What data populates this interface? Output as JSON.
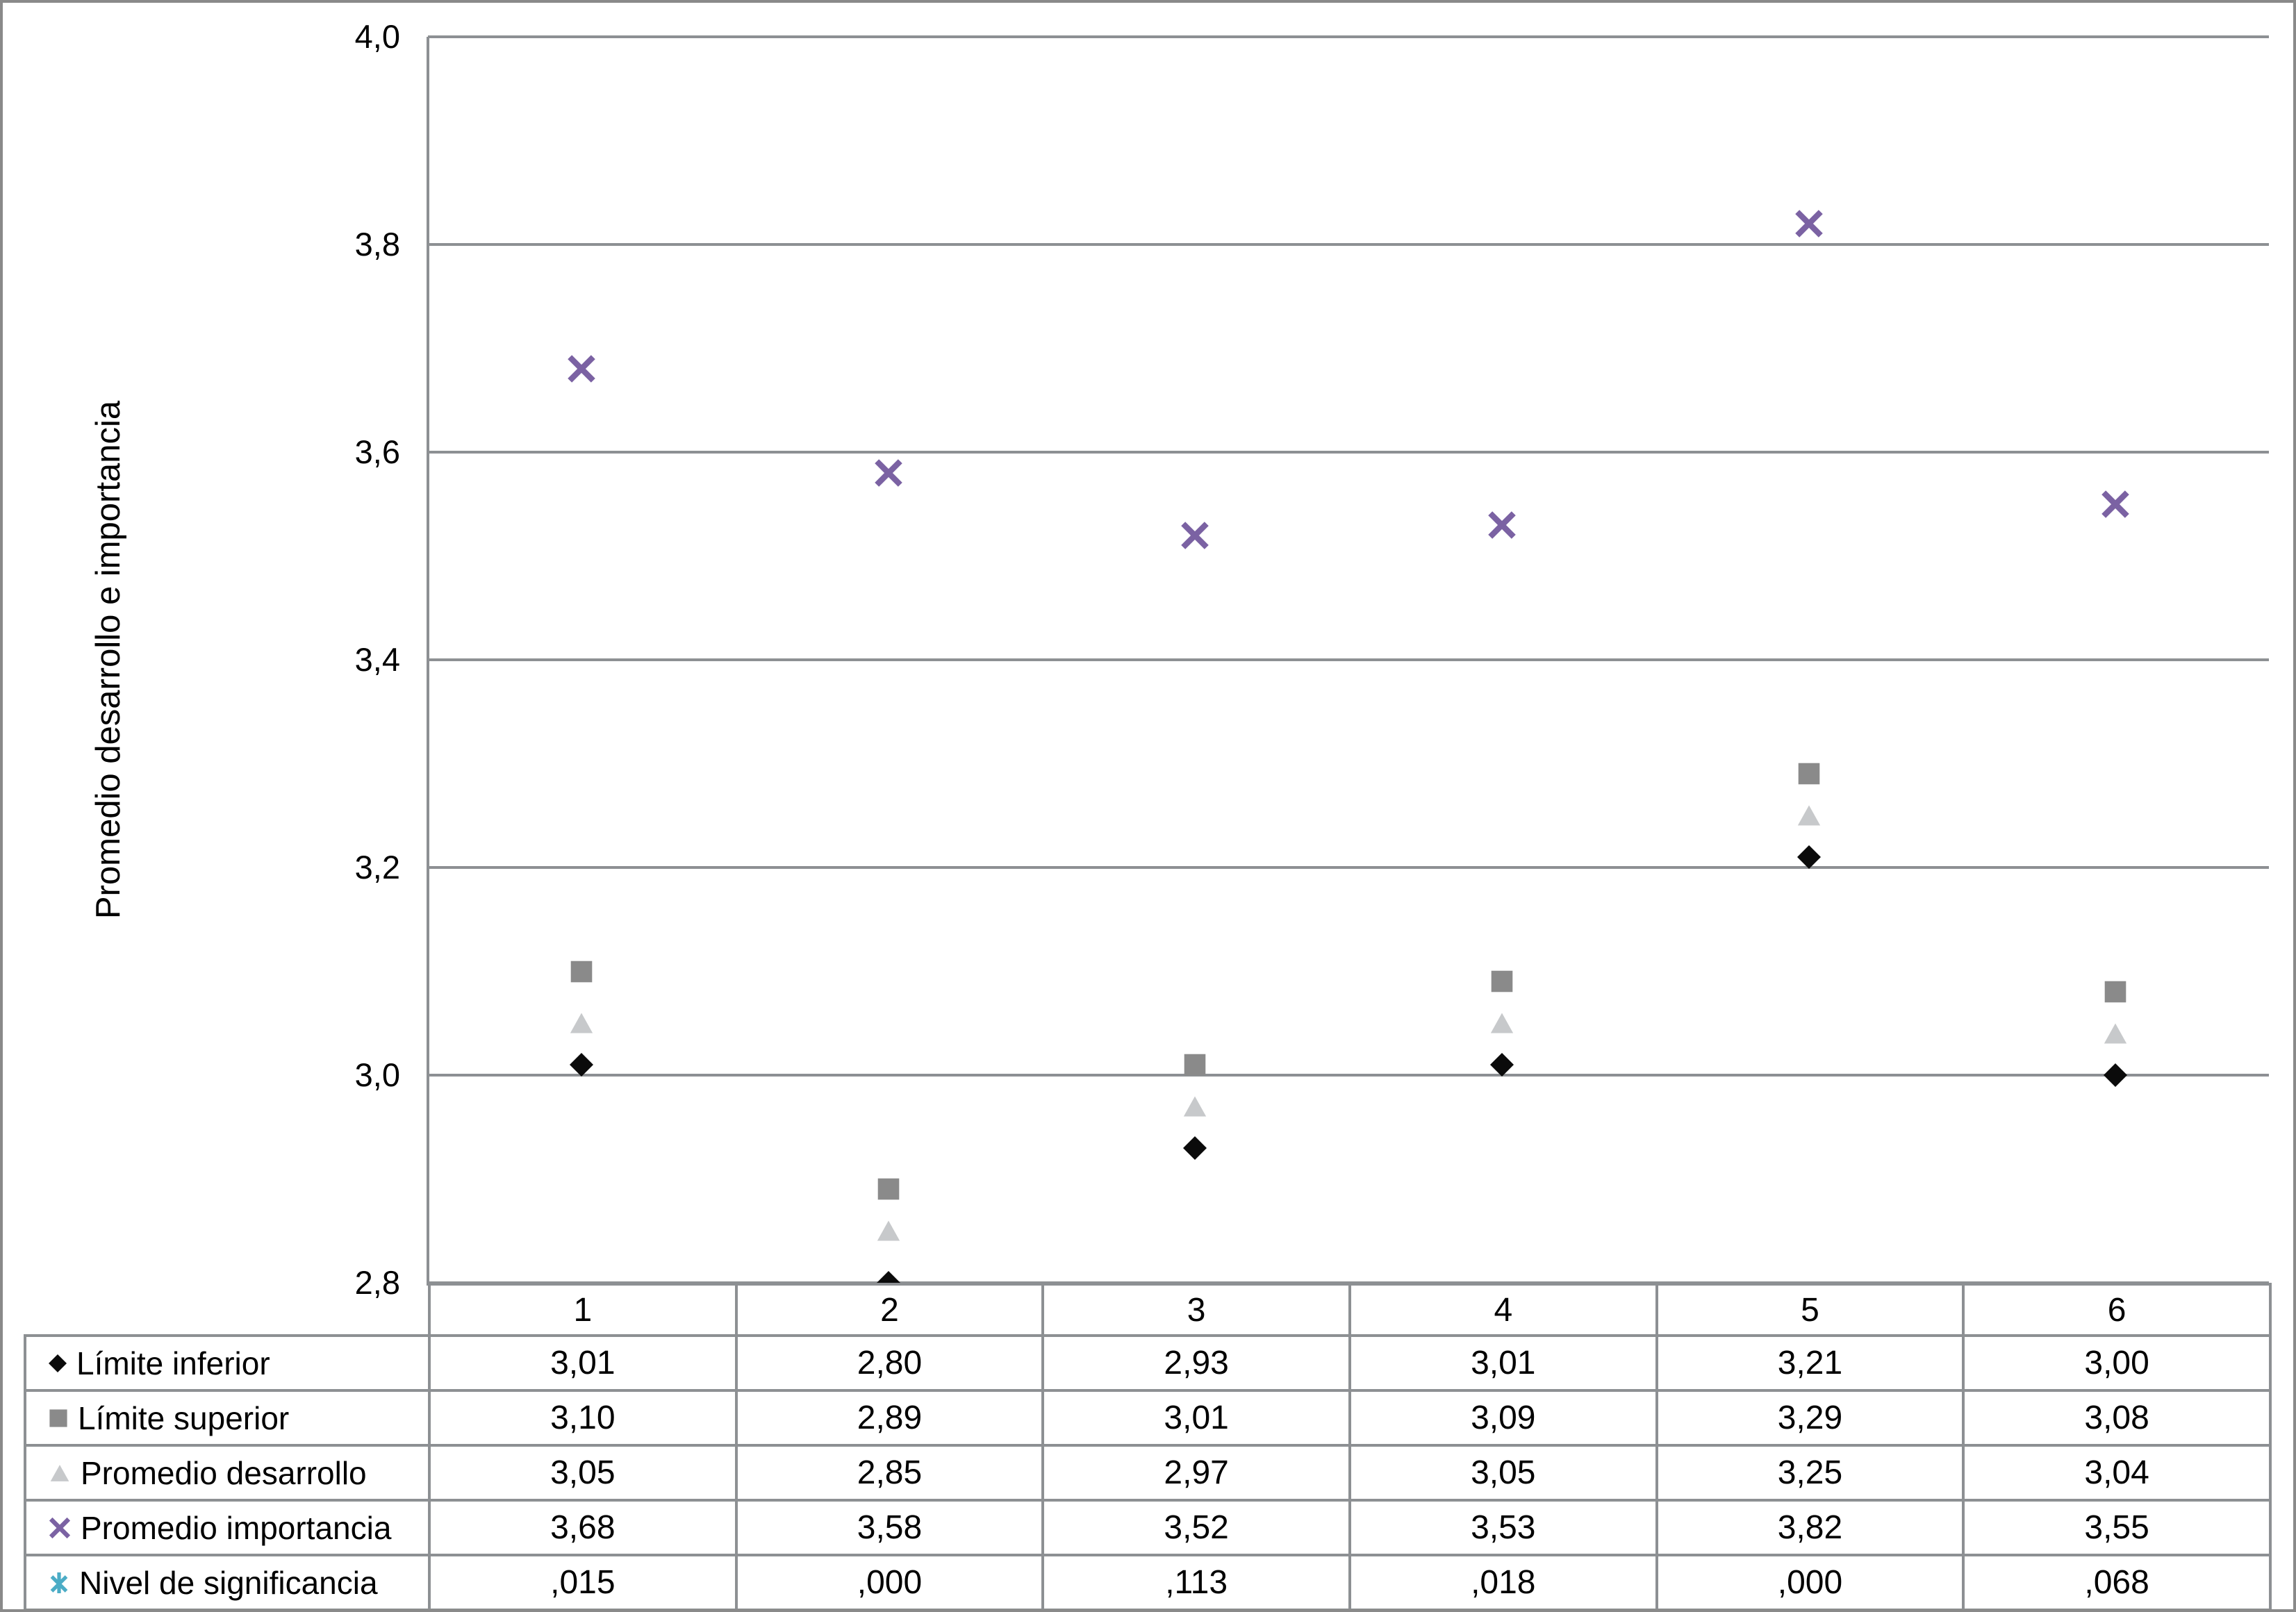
{
  "figure": {
    "background": "#ffffff",
    "border_color": "#8a8a8a",
    "grid_color": "#8d9093"
  },
  "chart_data": {
    "type": "scatter",
    "title": "",
    "xlabel": "",
    "ylabel": "Promedio desarrollo e importancia",
    "ylim": [
      2.8,
      4.0
    ],
    "grid": "horizontal",
    "legend_position": "table-below-left",
    "decimal_style": "comma",
    "categories": [
      "1",
      "2",
      "3",
      "4",
      "5",
      "6"
    ],
    "y_ticks": [
      {
        "value": 2.8,
        "label": "2,8"
      },
      {
        "value": 3.0,
        "label": "3,0"
      },
      {
        "value": 3.2,
        "label": "3,2"
      },
      {
        "value": 3.4,
        "label": "3,4"
      },
      {
        "value": 3.6,
        "label": "3,6"
      },
      {
        "value": 3.8,
        "label": "3,8"
      },
      {
        "value": 4.0,
        "label": "4,0"
      }
    ],
    "series": [
      {
        "name": "Límite inferior",
        "marker": "diamond",
        "color": "#0b0b0b",
        "plotted": true,
        "values": [
          3.01,
          2.8,
          2.93,
          3.01,
          3.21,
          3.0
        ],
        "value_labels": [
          "3,01",
          "2,80",
          "2,93",
          "3,01",
          "3,21",
          "3,00"
        ]
      },
      {
        "name": "Límite superior",
        "marker": "square",
        "color": "#8a8a8a",
        "plotted": true,
        "values": [
          3.1,
          2.89,
          3.01,
          3.09,
          3.29,
          3.08
        ],
        "value_labels": [
          "3,10",
          "2,89",
          "3,01",
          "3,09",
          "3,29",
          "3,08"
        ]
      },
      {
        "name": "Promedio desarrollo",
        "marker": "triangle",
        "color": "#c7c9cb",
        "plotted": true,
        "values": [
          3.05,
          2.85,
          2.97,
          3.05,
          3.25,
          3.04
        ],
        "value_labels": [
          "3,05",
          "2,85",
          "2,97",
          "3,05",
          "3,25",
          "3,04"
        ]
      },
      {
        "name": "Promedio importancia",
        "marker": "x",
        "color": "#7b62a3",
        "plotted": true,
        "values": [
          3.68,
          3.58,
          3.52,
          3.53,
          3.82,
          3.55
        ],
        "value_labels": [
          "3,68",
          "3,58",
          "3,52",
          "3,53",
          "3,82",
          "3,55"
        ]
      },
      {
        "name": "Nivel de significancia",
        "marker": "asterisk",
        "color": "#4bacc6",
        "plotted": false,
        "values": [
          0.015,
          0.0,
          0.113,
          0.018,
          0.0,
          0.068
        ],
        "value_labels": [
          ",015",
          ",000",
          ",113",
          ",018",
          ",000",
          ",068"
        ]
      }
    ]
  }
}
